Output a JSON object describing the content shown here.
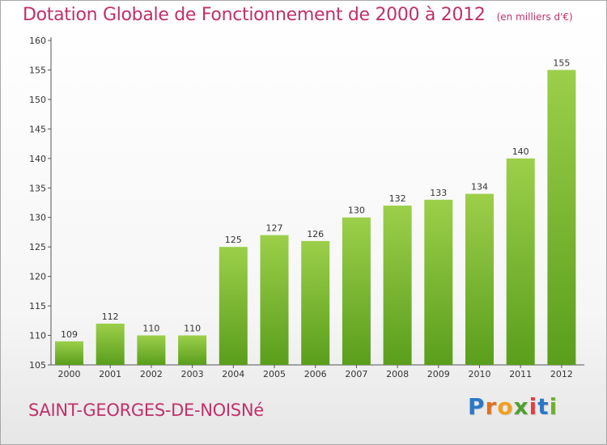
{
  "chart_data": {
    "type": "bar",
    "title": "Dotation Globale de Fonctionnement de 2000 à 2012",
    "subtitle": "(en milliers d'€)",
    "categories": [
      "2000",
      "2001",
      "2002",
      "2003",
      "2004",
      "2005",
      "2006",
      "2007",
      "2008",
      "2009",
      "2010",
      "2011",
      "2012"
    ],
    "values": [
      109,
      112,
      110,
      110,
      125,
      127,
      126,
      130,
      132,
      133,
      134,
      140,
      155
    ],
    "ylim": [
      105,
      160
    ],
    "yticks": [
      105,
      110,
      115,
      120,
      125,
      130,
      135,
      140,
      145,
      150,
      155,
      160
    ],
    "xlabel": "",
    "ylabel": "",
    "grid": false,
    "legend": "none",
    "bar_color_top": "#9ccf4a",
    "bar_color_bottom": "#5a9e1c"
  },
  "footer": {
    "commune": "SAINT-GEORGES-DE-NOISNé",
    "logo_letters": [
      "P",
      "r",
      "o",
      "x",
      "i",
      "t",
      "i"
    ],
    "logo_colors": [
      "#2a78c8",
      "#e07020",
      "#f0a020",
      "#50a030",
      "#e04040",
      "#2a78c8",
      "#70b030"
    ]
  },
  "colors": {
    "title": "#c0306a",
    "axis": "#555555"
  }
}
